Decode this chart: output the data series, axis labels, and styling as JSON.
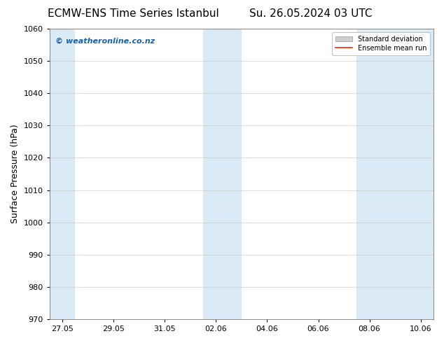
{
  "title_left": "ECMW-ENS Time Series Istanbul",
  "title_right": "Su. 26.05.2024 03 UTC",
  "ylabel": "Surface Pressure (hPa)",
  "ylim": [
    970,
    1060
  ],
  "yticks": [
    970,
    980,
    990,
    1000,
    1010,
    1020,
    1030,
    1040,
    1050,
    1060
  ],
  "xtick_labels": [
    "27.05",
    "29.05",
    "31.05",
    "02.06",
    "04.06",
    "06.06",
    "08.06",
    "10.06"
  ],
  "xtick_positions": [
    0,
    2,
    4,
    6,
    8,
    10,
    12,
    14
  ],
  "shaded_bands": [
    {
      "x_start": -0.5,
      "x_end": 0.5
    },
    {
      "x_start": 5.5,
      "x_end": 7.0
    },
    {
      "x_start": 11.5,
      "x_end": 14.5
    }
  ],
  "shade_color": "#daeaf6",
  "background_color": "#ffffff",
  "plot_bg_color": "#ffffff",
  "grid_color": "#cccccc",
  "watermark_text": "© weatheronline.co.nz",
  "watermark_color": "#1a5fa8",
  "legend_std_label": "Standard deviation",
  "legend_ens_label": "Ensemble mean run",
  "legend_std_color": "#d0d0d0",
  "legend_ens_color": "#ff2200",
  "title_fontsize": 11,
  "axis_fontsize": 9,
  "tick_fontsize": 8,
  "watermark_fontsize": 8,
  "figsize": [
    6.34,
    4.9
  ],
  "dpi": 100,
  "xlim": [
    -0.5,
    14.5
  ]
}
